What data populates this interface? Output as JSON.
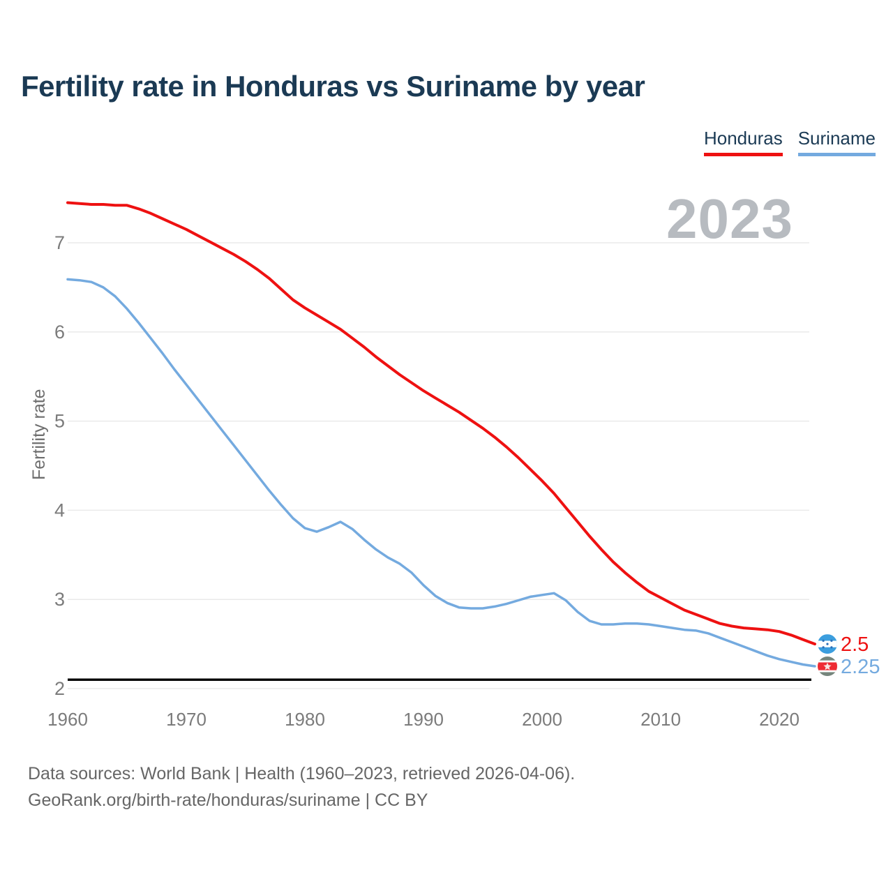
{
  "title": "Fertility rate in Honduras vs Suriname by year",
  "watermark": "2023",
  "legend": [
    {
      "label": "Honduras",
      "color": "#ee1111"
    },
    {
      "label": "Suriname",
      "color": "#74aadf"
    }
  ],
  "y_axis": {
    "label": "Fertility rate",
    "ticks": [
      7,
      6,
      5,
      4,
      3,
      2
    ]
  },
  "x_axis": {
    "ticks": [
      1960,
      1970,
      1980,
      1990,
      2000,
      2010,
      2020
    ]
  },
  "footer": {
    "line1": "Data sources: World Bank | Health (1960–2023, retrieved 2026-04-06).",
    "line2": "GeoRank.org/birth-rate/honduras/suriname | CC BY"
  },
  "chart_data": {
    "type": "line",
    "title": "Fertility rate in Honduras vs Suriname by year",
    "xlabel": "",
    "ylabel": "Fertility rate",
    "x_range": [
      1960,
      2023
    ],
    "ylim": [
      2,
      7.6
    ],
    "y_ticks": [
      2,
      3,
      4,
      5,
      6,
      7
    ],
    "grid": true,
    "legend_position": "top-right",
    "years": [
      1960,
      1961,
      1962,
      1963,
      1964,
      1965,
      1966,
      1967,
      1968,
      1969,
      1970,
      1971,
      1972,
      1973,
      1974,
      1975,
      1976,
      1977,
      1978,
      1979,
      1980,
      1981,
      1982,
      1983,
      1984,
      1985,
      1986,
      1987,
      1988,
      1989,
      1990,
      1991,
      1992,
      1993,
      1994,
      1995,
      1996,
      1997,
      1998,
      1999,
      2000,
      2001,
      2002,
      2003,
      2004,
      2005,
      2006,
      2007,
      2008,
      2009,
      2010,
      2011,
      2012,
      2013,
      2014,
      2015,
      2016,
      2017,
      2018,
      2019,
      2020,
      2021,
      2022,
      2023
    ],
    "series": [
      {
        "name": "Honduras",
        "color": "#ee1111",
        "end_label": "2.5",
        "end_flag": "honduras-flag",
        "values": [
          7.45,
          7.44,
          7.43,
          7.43,
          7.42,
          7.42,
          7.38,
          7.33,
          7.27,
          7.21,
          7.15,
          7.08,
          7.01,
          6.94,
          6.87,
          6.79,
          6.7,
          6.6,
          6.48,
          6.36,
          6.27,
          6.19,
          6.11,
          6.03,
          5.93,
          5.83,
          5.72,
          5.62,
          5.52,
          5.43,
          5.34,
          5.26,
          5.18,
          5.1,
          5.01,
          4.92,
          4.82,
          4.71,
          4.59,
          4.46,
          4.33,
          4.19,
          4.03,
          3.87,
          3.71,
          3.56,
          3.42,
          3.3,
          3.19,
          3.09,
          3.02,
          2.95,
          2.88,
          2.83,
          2.78,
          2.73,
          2.7,
          2.68,
          2.67,
          2.66,
          2.64,
          2.6,
          2.55,
          2.5
        ]
      },
      {
        "name": "Suriname",
        "color": "#74aadf",
        "end_label": "2.25",
        "end_flag": "suriname-flag",
        "values": [
          6.59,
          6.58,
          6.56,
          6.5,
          6.4,
          6.26,
          6.1,
          5.93,
          5.76,
          5.58,
          5.41,
          5.24,
          5.07,
          4.9,
          4.73,
          4.56,
          4.39,
          4.22,
          4.06,
          3.91,
          3.8,
          3.76,
          3.81,
          3.87,
          3.79,
          3.67,
          3.56,
          3.47,
          3.4,
          3.3,
          3.16,
          3.04,
          2.96,
          2.91,
          2.9,
          2.9,
          2.92,
          2.95,
          2.99,
          3.03,
          3.05,
          3.07,
          2.99,
          2.86,
          2.76,
          2.72,
          2.72,
          2.73,
          2.73,
          2.72,
          2.7,
          2.68,
          2.66,
          2.65,
          2.62,
          2.57,
          2.52,
          2.47,
          2.42,
          2.37,
          2.33,
          2.3,
          2.27,
          2.25
        ]
      }
    ],
    "reference_line": {
      "value": 2.1,
      "color": "#0a0a0a"
    },
    "colors": {
      "grid": "#eaeaea",
      "tick_text": "#7b7b7b",
      "honduras_flag_blue": "#3c9ede",
      "honduras_flag_star": "#2a6fb8",
      "suriname_flag_green": "#75857c",
      "suriname_flag_red": "#ee2b33",
      "suriname_flag_star": "#f6e6e2"
    }
  }
}
